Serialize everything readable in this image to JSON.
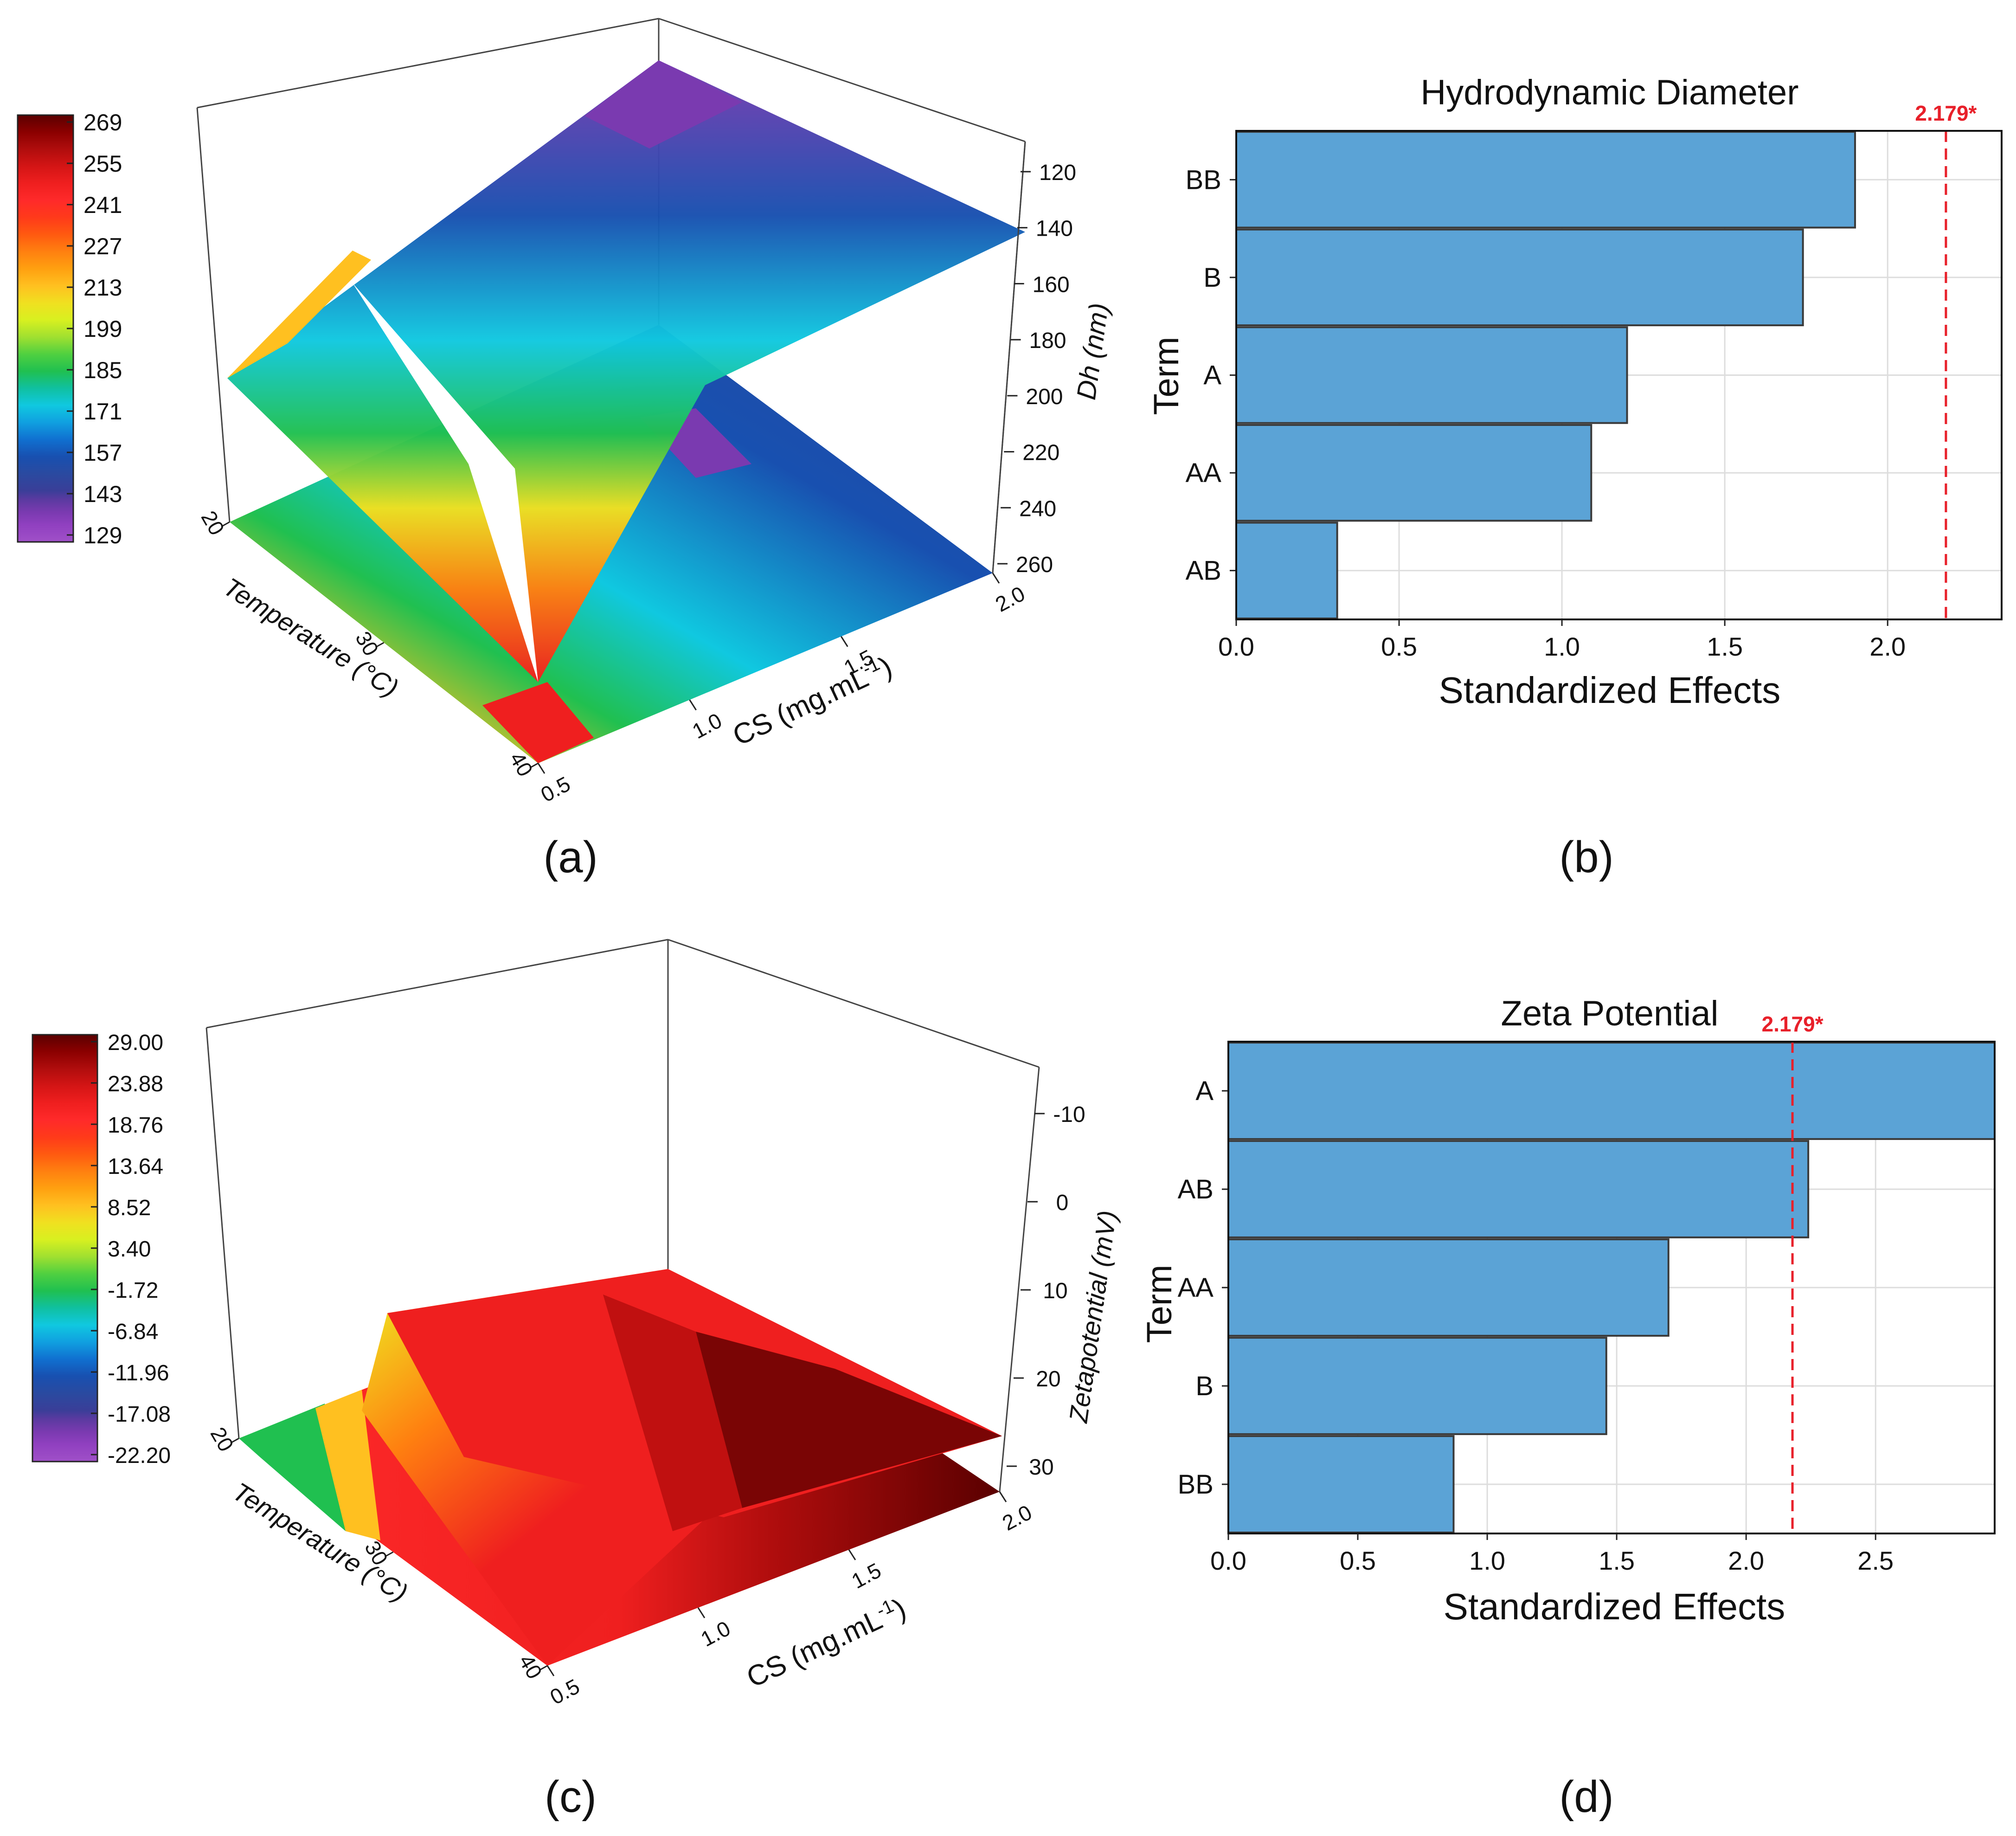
{
  "panels": {
    "a": {
      "label": "(a)"
    },
    "b": {
      "label": "(b)"
    },
    "c": {
      "label": "(c)"
    },
    "d": {
      "label": "(d)"
    }
  },
  "colors": {
    "bar": "#5ba3d6",
    "bar_edge": "#3a3a3a",
    "threshold": "#e8202a",
    "grid": "#dddddd",
    "plot_bg": "#ffffff"
  },
  "chart_data": [
    {
      "type": "surface3d",
      "panel": "a",
      "zlabel": "Dh (nm)",
      "xlabel": "Temperature (°C)",
      "ylabel_main": "CS (mg.mL",
      "ylabel_sup": "-1",
      "ylabel_end": ")",
      "x_ticks": [
        "20",
        "30",
        "40"
      ],
      "y_ticks": [
        "0.5",
        "1.0",
        "1.5",
        "2.0"
      ],
      "z_ticks": [
        "120",
        "140",
        "160",
        "180",
        "200",
        "220",
        "240",
        "260"
      ],
      "colorbar": {
        "labels": [
          "269",
          "255",
          "241",
          "227",
          "213",
          "199",
          "185",
          "171",
          "157",
          "143",
          "129"
        ],
        "colors": [
          "#5a0000",
          "#8b0000",
          "#b00d0d",
          "#d41515",
          "#ef1f1f",
          "#ff2a2a",
          "#ff3a1a",
          "#ff5a10",
          "#ff8010",
          "#ffa010",
          "#ffc020",
          "#f0e020",
          "#d8f020",
          "#a0e030",
          "#50d040",
          "#20c050",
          "#10c0a0",
          "#10c8e0",
          "#10a0e0",
          "#1070d0",
          "#1850b0",
          "#2a4aa0",
          "#3a3e98",
          "#5a3aa0",
          "#7a3ab0",
          "#9040c0",
          "#a050c8"
        ],
        "stops": [
          0,
          0.04,
          0.08,
          0.12,
          0.16,
          0.2,
          0.24,
          0.28,
          0.32,
          0.36,
          0.4,
          0.44,
          0.48,
          0.52,
          0.56,
          0.6,
          0.64,
          0.68,
          0.72,
          0.76,
          0.8,
          0.84,
          0.88,
          0.9,
          0.93,
          0.96,
          1.0
        ]
      }
    },
    {
      "type": "bar",
      "panel": "b",
      "orientation": "horizontal",
      "title": "Hydrodynamic Diameter",
      "xlabel": "Standardized Effects",
      "ylabel": "Term",
      "categories": [
        "BB",
        "B",
        "A",
        "AA",
        "AB"
      ],
      "values": [
        1.9,
        1.74,
        1.2,
        1.09,
        0.31
      ],
      "xlim": [
        0,
        2.35
      ],
      "x_ticks": [
        0.0,
        0.5,
        1.0,
        1.5,
        2.0
      ],
      "x_tick_labels": [
        "0.0",
        "0.5",
        "1.0",
        "1.5",
        "2.0"
      ],
      "threshold": 2.179,
      "threshold_label": "2.179*"
    },
    {
      "type": "surface3d",
      "panel": "c",
      "zlabel": "Zetapotential (mV)",
      "xlabel": "Temperature (°C)",
      "ylabel_main": "CS (mg.mL",
      "ylabel_sup": "-1",
      "ylabel_end": ")",
      "x_ticks": [
        "20",
        "30",
        "40"
      ],
      "y_ticks": [
        "0.5",
        "1.0",
        "1.5",
        "2.0"
      ],
      "z_ticks": [
        "-10",
        "0",
        "10",
        "20",
        "30"
      ],
      "colorbar": {
        "labels": [
          "29.00",
          "23.88",
          "18.76",
          "13.64",
          "8.52",
          "3.40",
          "-1.72",
          "-6.84",
          "-11.96",
          "-17.08",
          "-22.20"
        ],
        "colors": [
          "#5a0000",
          "#8b0000",
          "#b00d0d",
          "#d41515",
          "#ef1f1f",
          "#ff2a2a",
          "#ff3a1a",
          "#ff5a10",
          "#ff8010",
          "#ffa010",
          "#ffc020",
          "#f0e020",
          "#d8f020",
          "#a0e030",
          "#50d040",
          "#20c050",
          "#10c0a0",
          "#10c8e0",
          "#10a0e0",
          "#1070d0",
          "#1850b0",
          "#2a4aa0",
          "#3a3e98",
          "#5a3aa0",
          "#7a3ab0",
          "#9040c0",
          "#a050c8"
        ],
        "stops": [
          0,
          0.04,
          0.08,
          0.12,
          0.16,
          0.2,
          0.24,
          0.28,
          0.32,
          0.36,
          0.4,
          0.44,
          0.48,
          0.52,
          0.56,
          0.6,
          0.64,
          0.68,
          0.72,
          0.76,
          0.8,
          0.84,
          0.88,
          0.9,
          0.93,
          0.96,
          1.0
        ]
      }
    },
    {
      "type": "bar",
      "panel": "d",
      "orientation": "horizontal",
      "title": "Zeta Potential",
      "xlabel": "Standardized Effects",
      "ylabel": "Term",
      "categories": [
        "A",
        "AB",
        "AA",
        "B",
        "BB"
      ],
      "values": [
        2.96,
        2.24,
        1.7,
        1.46,
        0.87
      ],
      "xlim": [
        0,
        2.96
      ],
      "x_ticks": [
        0.0,
        0.5,
        1.0,
        1.5,
        2.0,
        2.5
      ],
      "x_tick_labels": [
        "0.0",
        "0.5",
        "1.0",
        "1.5",
        "2.0",
        "2.5"
      ],
      "threshold": 2.179,
      "threshold_label": "2.179*"
    }
  ]
}
